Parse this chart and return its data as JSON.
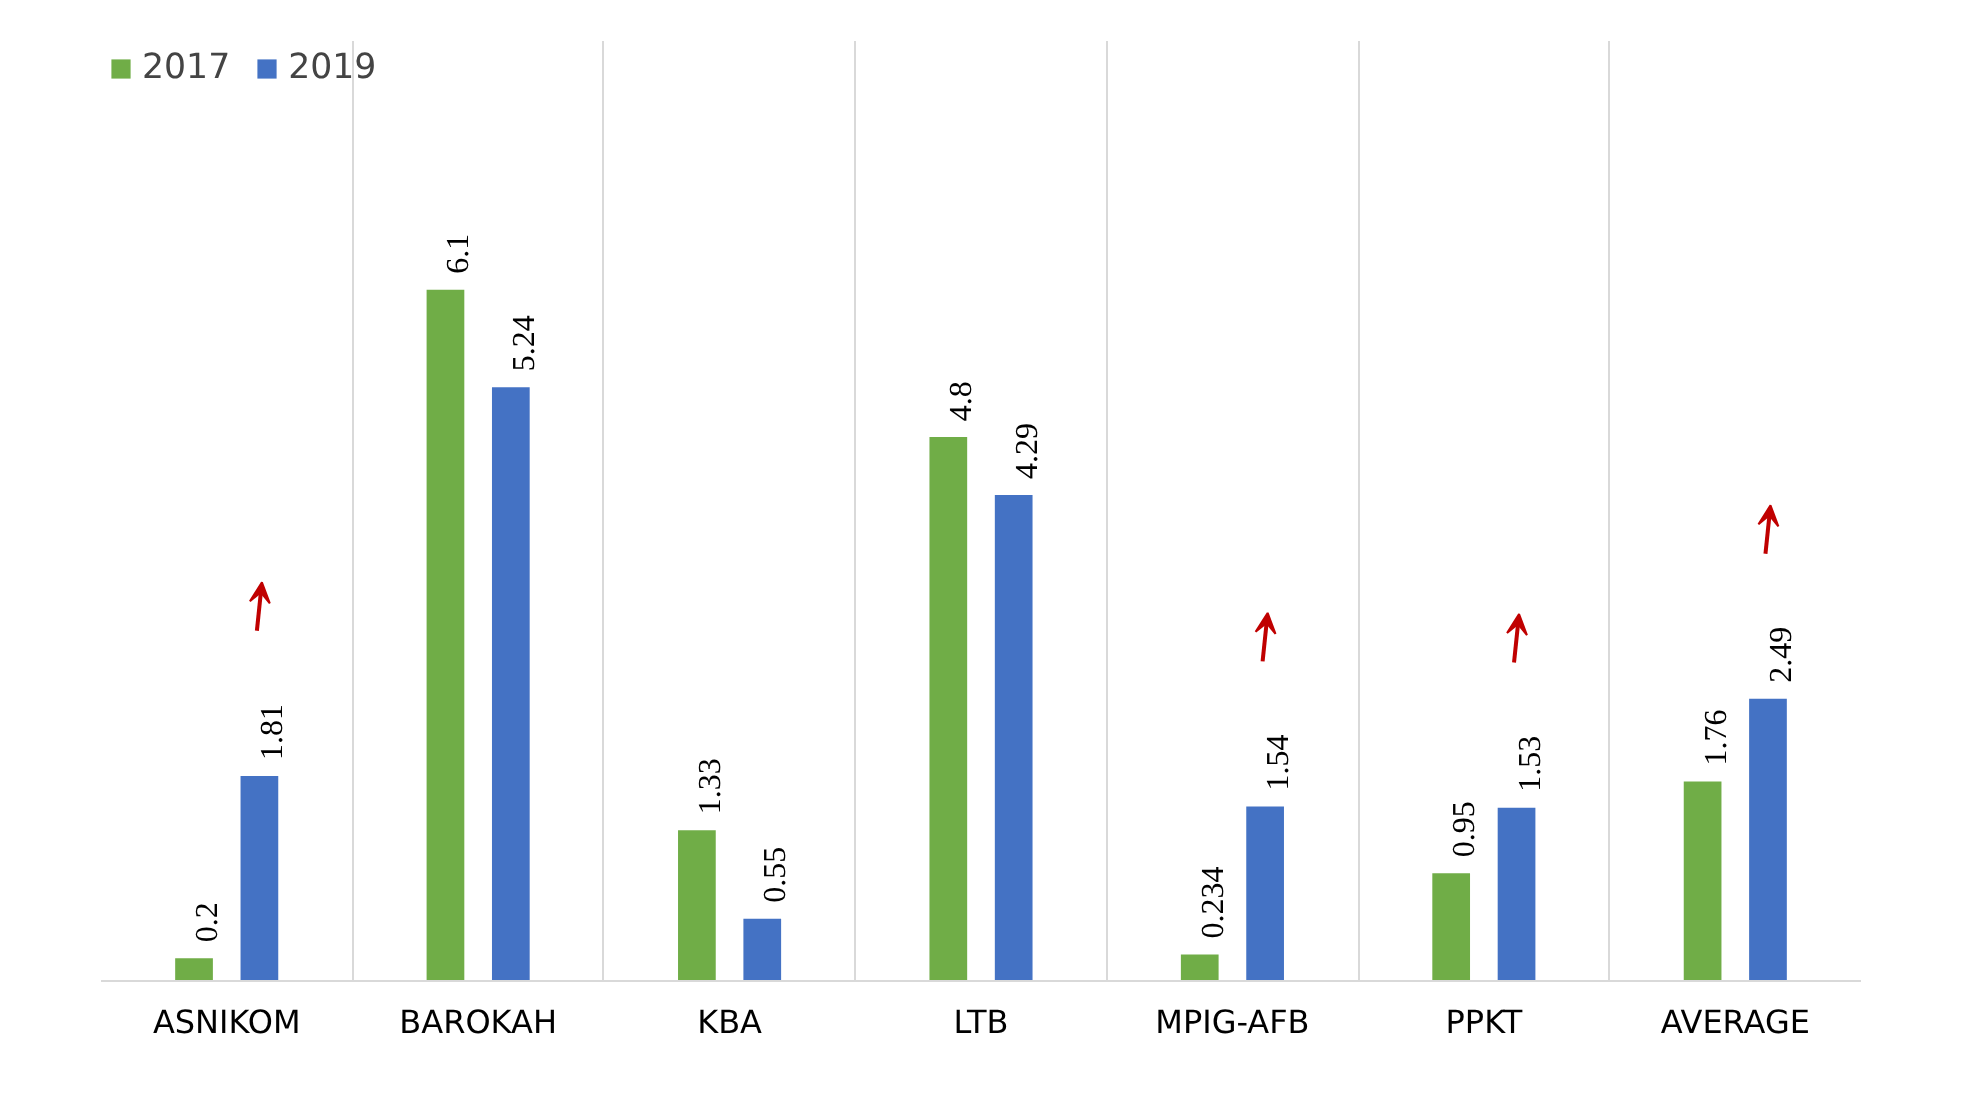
{
  "chart_data": {
    "type": "bar",
    "categories": [
      "ASNIKOM",
      "BAROKAH",
      "KBA",
      "LTB",
      "MPIG-AFB",
      "PPKT",
      "AVERAGE"
    ],
    "series": [
      {
        "name": "2017",
        "color": "#70ad47",
        "values": [
          0.2,
          6.1,
          1.33,
          4.8,
          0.234,
          0.95,
          1.76
        ]
      },
      {
        "name": "2019",
        "color": "#4472c4",
        "values": [
          1.81,
          5.24,
          0.55,
          4.29,
          1.54,
          1.53,
          2.49
        ]
      }
    ],
    "data_labels": true,
    "legend": "top left",
    "grid": "x"
  }
}
